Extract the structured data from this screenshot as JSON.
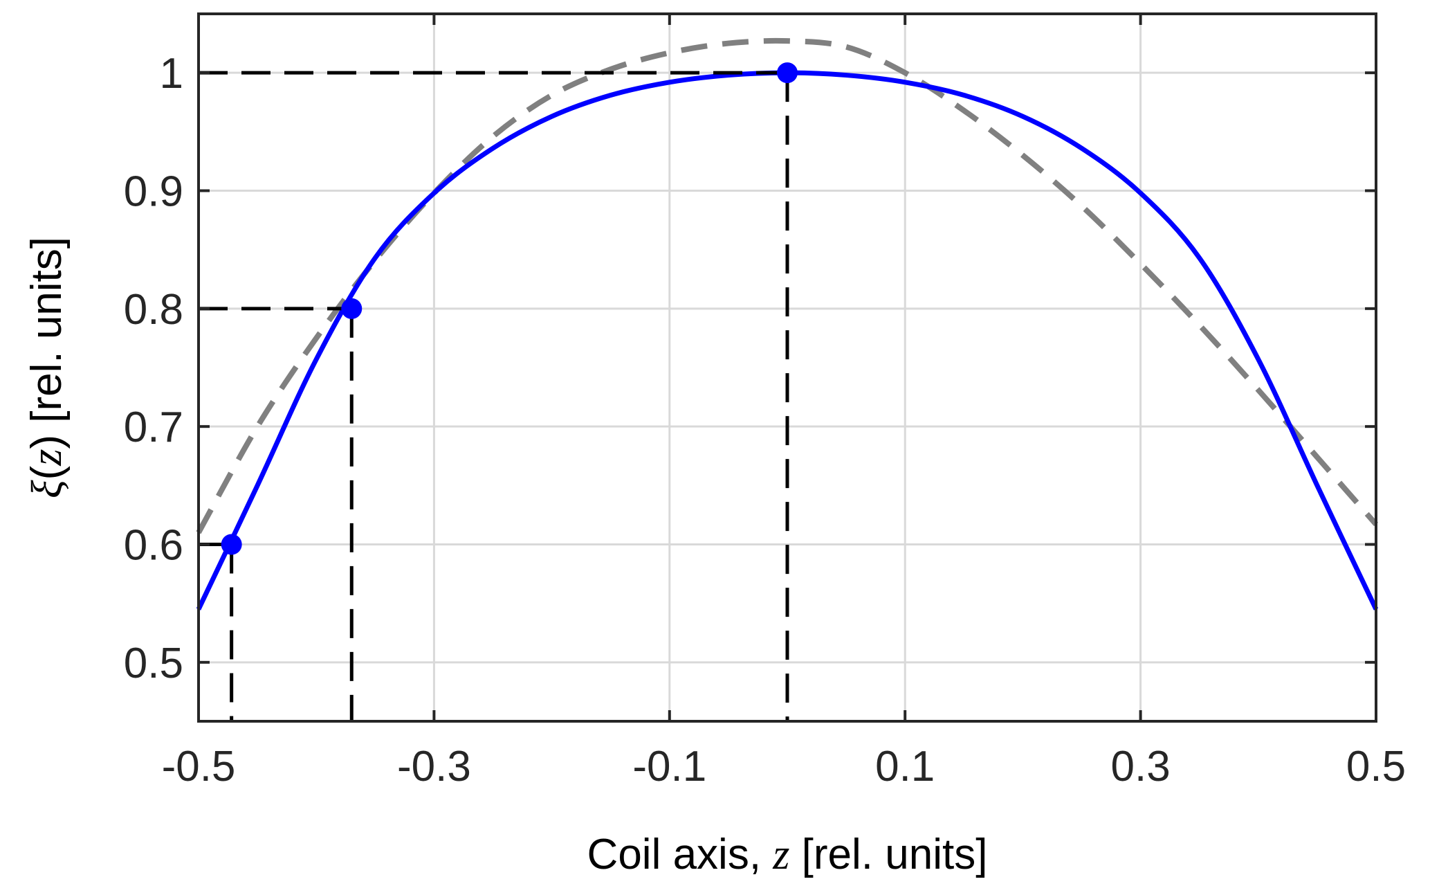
{
  "chart_data": {
    "type": "line",
    "xlabel_parts": {
      "prefix": "Coil axis, ",
      "var": "z",
      "suffix": " [rel. units]"
    },
    "ylabel_parts": {
      "greek": "ξ",
      "open": "(",
      "var": "z",
      "close": ")",
      "suffix": " [rel. units]"
    },
    "xlim": [
      -0.5,
      0.5
    ],
    "ylim": [
      0.45,
      1.05
    ],
    "xticks": [
      -0.5,
      -0.3,
      -0.1,
      0.1,
      0.3,
      0.5
    ],
    "xtick_labels": [
      "-0.5",
      "-0.3",
      "-0.1",
      "0.1",
      "0.3",
      "0.5"
    ],
    "yticks": [
      0.5,
      0.6,
      0.7,
      0.8,
      0.9,
      1.0
    ],
    "ytick_labels": [
      "0.5",
      "0.6",
      "0.7",
      "0.8",
      "0.9",
      "1"
    ],
    "grid": true,
    "series": [
      {
        "style": "solid",
        "color": "#0000ff",
        "x": [
          -0.5,
          -0.45,
          -0.4,
          -0.35,
          -0.3,
          -0.25,
          -0.2,
          -0.15,
          -0.1,
          -0.05,
          0.0,
          0.05,
          0.1,
          0.15,
          0.2,
          0.25,
          0.3,
          0.35,
          0.4,
          0.45,
          0.5
        ],
        "y": [
          0.545,
          0.65,
          0.757,
          0.843,
          0.898,
          0.936,
          0.963,
          0.981,
          0.992,
          0.998,
          1.0,
          0.998,
          0.992,
          0.981,
          0.963,
          0.936,
          0.898,
          0.843,
          0.757,
          0.65,
          0.545
        ]
      },
      {
        "style": "dashed",
        "color": "#808080",
        "x": [
          -0.5,
          -0.45,
          -0.4,
          -0.35,
          -0.3,
          -0.25,
          -0.2,
          -0.15,
          -0.1,
          -0.05,
          0.0,
          0.05,
          0.1,
          0.15,
          0.2,
          0.25,
          0.3,
          0.35,
          0.4,
          0.45,
          0.5
        ],
        "y": [
          0.61,
          0.7,
          0.775,
          0.841,
          0.898,
          0.946,
          0.981,
          1.003,
          1.017,
          1.025,
          1.027,
          1.022,
          1.0,
          0.968,
          0.93,
          0.887,
          0.838,
          0.786,
          0.731,
          0.674,
          0.617
        ]
      }
    ],
    "markers": [
      {
        "x": -0.472,
        "y": 0.6
      },
      {
        "x": -0.37,
        "y": 0.8
      },
      {
        "x": 0.0,
        "y": 1.0
      }
    ],
    "marker_color": "#0000ff",
    "guide_color": "#000000"
  }
}
